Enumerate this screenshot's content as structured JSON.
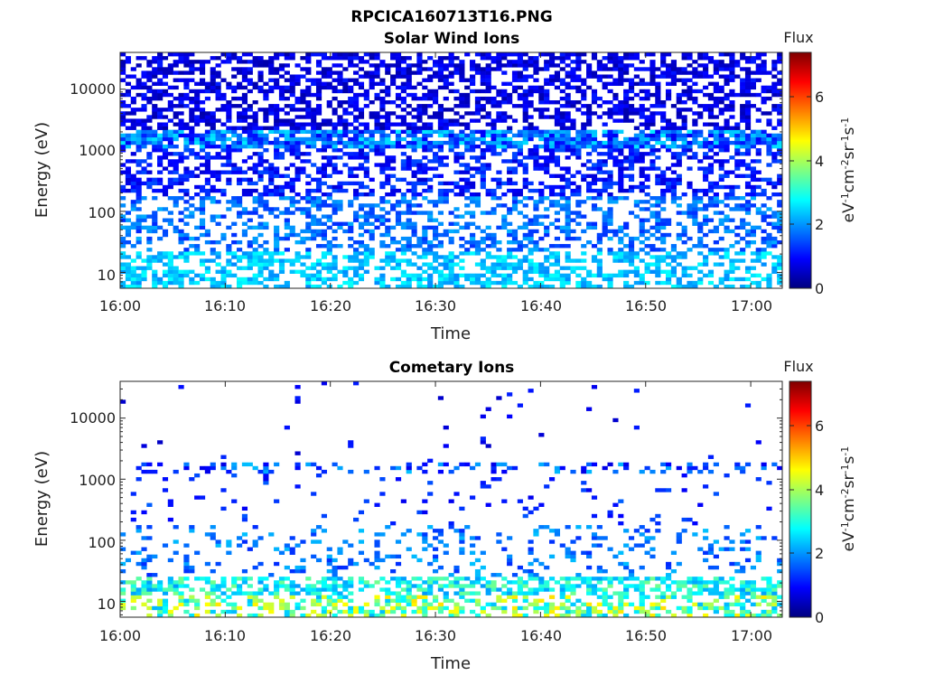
{
  "figure": {
    "title": "RPCICA160713T16.PNG"
  },
  "chart_data": [
    {
      "type": "heatmap",
      "title": "Solar Wind Ions",
      "xlabel": "Time",
      "ylabel": "Energy (eV)",
      "yscale": "log",
      "xlim": [
        "16:00",
        "17:03"
      ],
      "ylim": [
        5.5,
        40000
      ],
      "xticks": [
        "16:00",
        "16:10",
        "16:20",
        "16:30",
        "16:40",
        "16:50",
        "17:00"
      ],
      "yticks": [
        "10",
        "100",
        "1000",
        "10000"
      ],
      "colorbar": {
        "label": "Flux",
        "units": "eV-1cm-2sr-1s-1",
        "range": [
          0,
          7.3
        ],
        "ticks": [
          "0",
          "2",
          "4",
          "6"
        ]
      },
      "intensity": "dense",
      "seed": 11
    },
    {
      "type": "heatmap",
      "title": "Cometary Ions",
      "xlabel": "Time",
      "ylabel": "Energy (eV)",
      "yscale": "log",
      "xlim": [
        "16:00",
        "17:03"
      ],
      "ylim": [
        5.5,
        40000
      ],
      "xticks": [
        "16:00",
        "16:10",
        "16:20",
        "16:30",
        "16:40",
        "16:50",
        "17:00"
      ],
      "yticks": [
        "10",
        "100",
        "1000",
        "10000"
      ],
      "colorbar": {
        "label": "Flux",
        "units": "eV-1cm-2sr-1s-1",
        "range": [
          0,
          7.3
        ],
        "ticks": [
          "0",
          "2",
          "4",
          "6"
        ]
      },
      "intensity": "sparse",
      "seed": 29
    }
  ]
}
